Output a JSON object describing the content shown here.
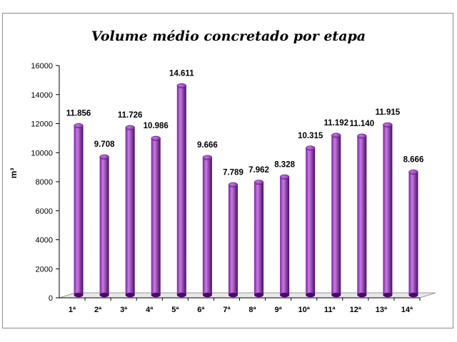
{
  "chart_data": {
    "type": "bar",
    "title": "Volume médio concretado por etapa",
    "xlabel": "",
    "ylabel": "m³",
    "ylim": [
      0,
      16000
    ],
    "yticks": [
      0,
      2000,
      4000,
      6000,
      8000,
      10000,
      12000,
      14000,
      16000
    ],
    "grid": false,
    "categories": [
      "1ª",
      "2ª",
      "3ª",
      "4ª",
      "5ª",
      "6ª",
      "7ª",
      "8ª",
      "9ª",
      "10ª",
      "11ª",
      "12ª",
      "13ª",
      "14ª"
    ],
    "values": [
      11856,
      9708,
      11726,
      10986,
      14611,
      9666,
      7789,
      7962,
      8328,
      10315,
      11192,
      11140,
      11915,
      8666
    ],
    "data_labels": [
      "11.856",
      "9.708",
      "11.726",
      "10.986",
      "14.611",
      "9.666",
      "7.789",
      "7.962",
      "8.328",
      "10.315",
      "11.192",
      "11.140",
      "11.915",
      "8.666"
    ],
    "colors": {
      "bar": "#7B1FA2",
      "bar_light": "#C77EE0",
      "bar_dark": "#4A0A6B",
      "floor": "#e8e8e8"
    }
  }
}
